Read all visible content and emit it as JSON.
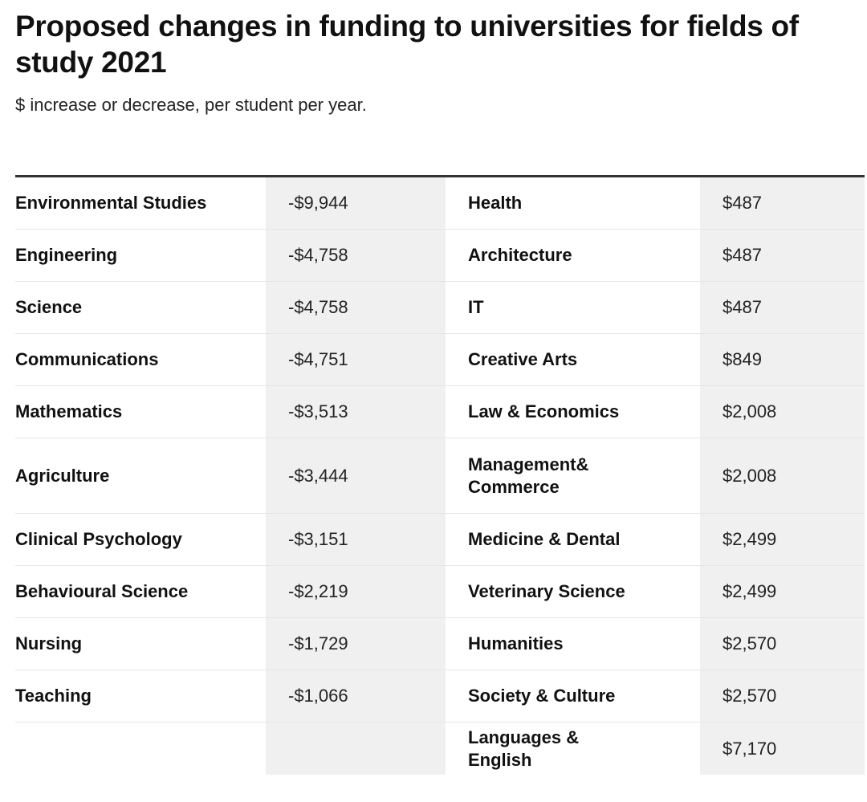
{
  "title": "Proposed changes in funding to universities for fields of study 2021",
  "subtitle": "$ increase or decrease, per student per year.",
  "chart_data": {
    "type": "table",
    "columns": [
      "",
      "",
      "",
      ""
    ],
    "rows": [
      {
        "field_a": "Environmental Studies",
        "value_a": "-$9,944",
        "field_b": "Health",
        "value_b": "$487"
      },
      {
        "field_a": "Engineering",
        "value_a": "-$4,758",
        "field_b": "Architecture",
        "value_b": "$487"
      },
      {
        "field_a": "Science",
        "value_a": "-$4,758",
        "field_b": "IT",
        "value_b": "$487"
      },
      {
        "field_a": "Communications",
        "value_a": "-$4,751",
        "field_b": "Creative Arts",
        "value_b": "$849"
      },
      {
        "field_a": "Mathematics",
        "value_a": "-$3,513",
        "field_b": "Law & Economics",
        "value_b": "$2,008"
      },
      {
        "field_a": "Agriculture",
        "value_a": "-$3,444",
        "field_b": "Management& Commerce",
        "value_b": "$2,008"
      },
      {
        "field_a": "Clinical Psychology",
        "value_a": "-$3,151",
        "field_b": "Medicine & Dental",
        "value_b": "$2,499"
      },
      {
        "field_a": "Behavioural Science",
        "value_a": "-$2,219",
        "field_b": "Veterinary Science",
        "value_b": "$2,499"
      },
      {
        "field_a": "Nursing",
        "value_a": "-$1,729",
        "field_b": "Humanities",
        "value_b": "$2,570"
      },
      {
        "field_a": "Teaching",
        "value_a": "-$1,066",
        "field_b": "Society & Culture",
        "value_b": "$2,570"
      },
      {
        "field_a": "",
        "value_a": "",
        "field_b": "Languages & English",
        "value_b": "$7,170"
      }
    ]
  }
}
